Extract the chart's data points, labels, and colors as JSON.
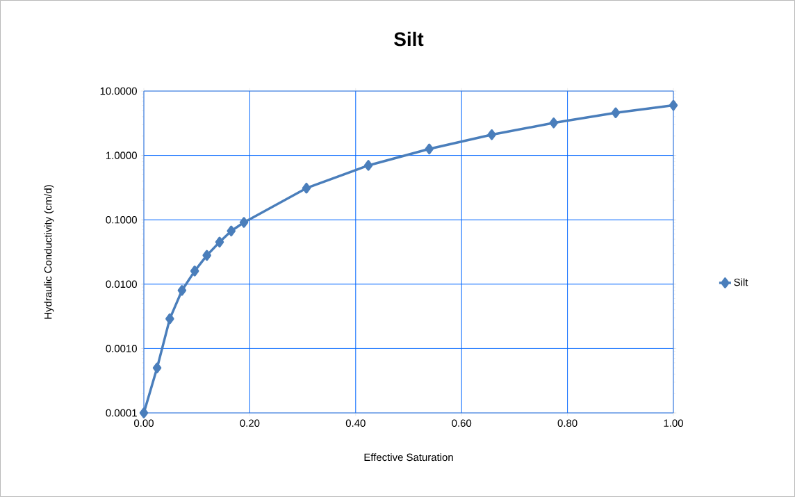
{
  "chart_data": {
    "type": "line",
    "title": "Silt",
    "xlabel": "Effective Saturation",
    "ylabel": "Hydraulic Conductivity (cm/d)",
    "x": [
      0,
      0.025,
      0.049,
      0.072,
      0.096,
      0.119,
      0.143,
      0.165,
      0.189,
      0.307,
      0.424,
      0.539,
      0.657,
      0.774,
      0.891,
      1.0
    ],
    "series": [
      {
        "name": "Silt",
        "color": "#4a7ebb",
        "values": [
          0.0001,
          0.0005,
          0.0029,
          0.008,
          0.016,
          0.028,
          0.045,
          0.067,
          0.091,
          0.31,
          0.7,
          1.26,
          2.1,
          3.2,
          4.6,
          6.0
        ]
      }
    ],
    "xlim": [
      0,
      1
    ],
    "ylim": [
      0.0001,
      10
    ],
    "log": "y",
    "xticks": [
      {
        "value": 0,
        "label": "0.00"
      },
      {
        "value": 0.2,
        "label": "0.20"
      },
      {
        "value": 0.4,
        "label": "0.40"
      },
      {
        "value": 0.6,
        "label": "0.60"
      },
      {
        "value": 0.8,
        "label": "0.80"
      },
      {
        "value": 1,
        "label": "1.00"
      }
    ],
    "yticks": [
      {
        "value": 0.0001,
        "label": "0.0001"
      },
      {
        "value": 0.001,
        "label": "0.0010"
      },
      {
        "value": 0.01,
        "label": "0.0100"
      },
      {
        "value": 0.1,
        "label": "0.1000"
      },
      {
        "value": 1,
        "label": "1.0000"
      },
      {
        "value": 10,
        "label": "10.0000"
      }
    ],
    "grid": true,
    "legend": "right",
    "marker": "diamond",
    "line_style": "solid"
  }
}
